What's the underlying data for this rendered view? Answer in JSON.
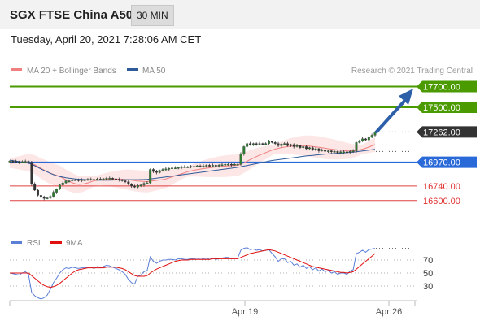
{
  "header": {
    "title": "SGX FTSE China A50",
    "timeframe": "30 MIN"
  },
  "timestamp": "Tuesday, April 20, 2021 7:28:06 AM CET",
  "legend": {
    "ma": {
      "label": "MA 20 + Bollinger Bands",
      "color": "#f08080"
    },
    "ma50": {
      "label": "MA 50",
      "color": "#2f5b9a"
    },
    "rsi": {
      "label": "RSI",
      "color": "#5b7fd6"
    },
    "rsi_ma": {
      "label": "9MA",
      "color": "#e01010"
    }
  },
  "credit": "Research © 2021 Trading Central",
  "x_labels": [
    "Apr 19",
    "Apr 26"
  ],
  "levels": [
    {
      "value": 17700,
      "label": "17700.00",
      "color": "#4a9a00",
      "style": "resistance"
    },
    {
      "value": 17500,
      "label": "17500.00",
      "color": "#4a9a00",
      "style": "resistance"
    },
    {
      "value": 17262,
      "label": "17262.00",
      "color": "#333333",
      "style": "last"
    },
    {
      "value": 16970,
      "label": "16970.00",
      "color": "#2a6ad8",
      "style": "pivot"
    },
    {
      "value": 16740,
      "label": "16740.00",
      "color": "#e04040",
      "style": "support"
    },
    {
      "value": 16600,
      "label": "16600.00",
      "color": "#e04040",
      "style": "support"
    }
  ],
  "rsi_levels": [
    {
      "value": 70,
      "label": "70"
    },
    {
      "value": 50,
      "label": "50"
    },
    {
      "value": 30,
      "label": "30"
    }
  ],
  "chart_data": {
    "type": "line",
    "instrument": "SGX FTSE China A50",
    "interval": "30 MIN",
    "ylim": [
      16500,
      17800
    ],
    "close": [
      16980,
      16978,
      16975,
      16970,
      16975,
      16978,
      16970,
      16760,
      16700,
      16650,
      16630,
      16620,
      16625,
      16640,
      16680,
      16710,
      16750,
      16770,
      16790,
      16790,
      16800,
      16800,
      16795,
      16800,
      16800,
      16805,
      16805,
      16800,
      16808,
      16805,
      16810,
      16815,
      16815,
      16810,
      16805,
      16800,
      16790,
      16780,
      16760,
      16740,
      16730,
      16745,
      16750,
      16765,
      16770,
      16900,
      16880,
      16870,
      16890,
      16900,
      16905,
      16910,
      16915,
      16915,
      16920,
      16925,
      16925,
      16925,
      16930,
      16930,
      16935,
      16930,
      16935,
      16940,
      16935,
      16940,
      16935,
      16940,
      16945,
      16950,
      16950,
      16945,
      16950,
      16950,
      17050,
      17120,
      17150,
      17140,
      17150,
      17145,
      17150,
      17145,
      17150,
      17170,
      17160,
      17150,
      17130,
      17145,
      17150,
      17130,
      17140,
      17120,
      17130,
      17110,
      17120,
      17100,
      17110,
      17090,
      17100,
      17080,
      17090,
      17075,
      17080,
      17070,
      17075,
      17060,
      17070,
      17070,
      17065,
      17075,
      17080,
      17160,
      17175,
      17195,
      17185,
      17210,
      17230,
      17262
    ],
    "ma20": [
      16960,
      16962,
      16963,
      16963,
      16964,
      16966,
      16966,
      16958,
      16945,
      16928,
      16910,
      16894,
      16878,
      16864,
      16852,
      16842,
      16832,
      16816,
      16800,
      16785,
      16772,
      16762,
      16756,
      16758,
      16762,
      16770,
      16780,
      16790,
      16795,
      16800,
      16802,
      16804,
      16805,
      16806,
      16806,
      16806,
      16805,
      16803,
      16800,
      16796,
      16792,
      16789,
      16786,
      16784,
      16782,
      16786,
      16790,
      16794,
      16798,
      16802,
      16808,
      16818,
      16828,
      16838,
      16848,
      16858,
      16868,
      16878,
      16886,
      16892,
      16898,
      16903,
      16908,
      16912,
      16916,
      16920,
      16923,
      16926,
      16929,
      16932,
      16934,
      16936,
      16938,
      16940,
      16950,
      16964,
      16980,
      16995,
      17010,
      17024,
      17038,
      17050,
      17062,
      17074,
      17086,
      17096,
      17104,
      17110,
      17116,
      17120,
      17124,
      17126,
      17128,
      17130,
      17130,
      17128,
      17125,
      17122,
      17118,
      17114,
      17110,
      17105,
      17100,
      17096,
      17092,
      17088,
      17085,
      17082,
      17080,
      17078,
      17078,
      17082,
      17088,
      17095,
      17105,
      17116,
      17128,
      17140
    ],
    "ma50": [
      16990,
      16985,
      16980,
      16975,
      16970,
      16965,
      16960,
      16950,
      16935,
      16920,
      16905,
      16890,
      16876,
      16862,
      16850,
      16840,
      16832,
      16826,
      16820,
      16815,
      16811,
      16808,
      16806,
      16804,
      16802,
      16800,
      16799,
      16798,
      16797,
      16796,
      16796,
      16796,
      16796,
      16797,
      16798,
      16799,
      16800,
      16801,
      16801,
      16801,
      16801,
      16801,
      16802,
      16803,
      16804,
      16808,
      16812,
      16816,
      16820,
      16824,
      16828,
      16832,
      16836,
      16840,
      16844,
      16848,
      16852,
      16856,
      16860,
      16864,
      16868,
      16872,
      16876,
      16880,
      16884,
      16888,
      16892,
      16896,
      16900,
      16904,
      16908,
      16912,
      16916,
      16920,
      16926,
      16932,
      16938,
      16944,
      16950,
      16956,
      16962,
      16968,
      16974,
      16980,
      16986,
      16990,
      16994,
      16998,
      17002,
      17006,
      17010,
      17014,
      17018,
      17022,
      17026,
      17030,
      17033,
      17036,
      17039,
      17042,
      17045,
      17048,
      17050,
      17052,
      17054,
      17056,
      17058,
      17060,
      17062,
      17064,
      17066,
      17070,
      17074,
      17078,
      17082,
      17086,
      17090,
      17094
    ],
    "rsi": [
      50,
      49,
      48,
      47,
      50,
      52,
      48,
      20,
      15,
      12,
      10,
      12,
      16,
      25,
      35,
      42,
      50,
      55,
      58,
      57,
      59,
      58,
      57,
      58,
      58,
      59,
      59,
      57,
      60,
      58,
      60,
      62,
      61,
      59,
      57,
      55,
      52,
      48,
      40,
      35,
      33,
      45,
      47,
      52,
      54,
      75,
      68,
      65,
      68,
      70,
      70,
      71,
      71,
      70,
      72,
      72,
      71,
      71,
      72,
      72,
      73,
      71,
      72,
      73,
      71,
      73,
      71,
      72,
      73,
      74,
      74,
      72,
      73,
      73,
      85,
      88,
      89,
      86,
      87,
      85,
      86,
      84,
      85,
      86,
      80,
      75,
      68,
      72,
      72,
      66,
      68,
      62,
      64,
      59,
      62,
      57,
      60,
      55,
      58,
      53,
      56,
      52,
      54,
      50,
      52,
      48,
      50,
      50,
      48,
      53,
      55,
      80,
      82,
      85,
      82,
      86,
      87,
      88
    ],
    "rsi_ma": [
      50,
      50,
      50,
      50,
      50,
      50,
      50,
      46,
      42,
      38,
      34,
      31,
      29,
      28,
      29,
      31,
      34,
      38,
      42,
      46,
      50,
      53,
      55,
      56,
      57,
      58,
      58,
      58,
      58,
      58,
      58,
      59,
      59,
      59,
      59,
      58,
      57,
      55,
      52,
      49,
      46,
      45,
      45,
      45,
      46,
      50,
      53,
      56,
      58,
      60,
      62,
      64,
      66,
      68,
      69,
      70,
      70,
      70,
      71,
      71,
      71,
      71,
      71,
      71,
      71,
      72,
      72,
      72,
      72,
      72,
      72,
      72,
      72,
      72,
      74,
      76,
      78,
      80,
      81,
      82,
      83,
      84,
      85,
      86,
      85,
      84,
      82,
      80,
      78,
      76,
      74,
      72,
      70,
      68,
      66,
      64,
      62,
      60,
      59,
      58,
      57,
      56,
      55,
      54,
      53,
      52,
      51,
      51,
      50,
      51,
      52,
      56,
      60,
      64,
      68,
      72,
      76,
      80
    ],
    "rsi_ylim": [
      0,
      100
    ]
  }
}
